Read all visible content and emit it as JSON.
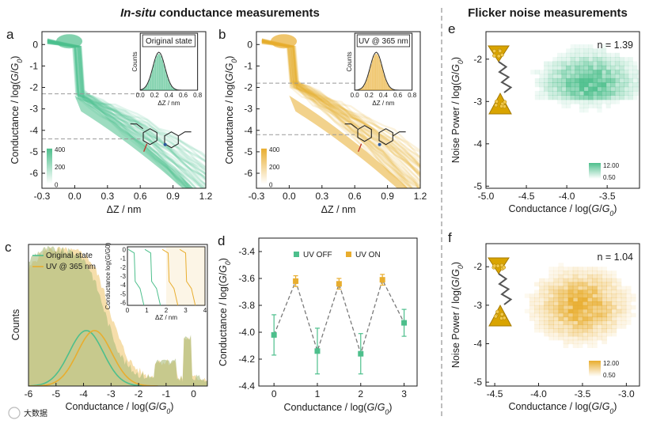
{
  "headers": {
    "left_italic": "In-situ",
    "left_rest": " conductance measurements",
    "right": "Flicker noise measurements"
  },
  "colors": {
    "green": "#4dbf8c",
    "orange": "#e8ad2e",
    "olive": "#a9ba7a",
    "dark": "#1a1a1a"
  },
  "watermark": "大数据",
  "chart_data": [
    {
      "panel": "a",
      "type": "heatmap",
      "xlabel": "ΔZ / nm",
      "ylabel": "Conductance / log(G/G0)",
      "xticks": [
        "-0.3",
        "0.0",
        "0.3",
        "0.6",
        "0.9",
        "1.2"
      ],
      "yticks": [
        "0",
        "-1",
        "-2",
        "-3",
        "-4",
        "-5",
        "-6"
      ],
      "xlim": [
        -0.3,
        1.2
      ],
      "ylim": [
        -6.7,
        0.6
      ],
      "levels": [
        -2.3,
        -4.4
      ],
      "colorbar": {
        "labels": [
          "400",
          "200",
          "0"
        ]
      },
      "inset": {
        "title": "Original state",
        "xlabel": "ΔZ / nm",
        "ylabel": "Counts",
        "xticks": [
          "0.0",
          "0.2",
          "0.4",
          "0.6",
          "0.8"
        ],
        "peak": 0.26
      }
    },
    {
      "panel": "b",
      "type": "heatmap",
      "xlabel": "ΔZ / nm",
      "ylabel": "Conductance / log(G/G0)",
      "xticks": [
        "-0.3",
        "0.0",
        "0.3",
        "0.6",
        "0.9",
        "1.2"
      ],
      "yticks": [
        "0",
        "-1",
        "-2",
        "-3",
        "-4",
        "-5",
        "-6"
      ],
      "xlim": [
        -0.3,
        1.2
      ],
      "ylim": [
        -6.7,
        0.6
      ],
      "levels": [
        -1.8,
        -4.2
      ],
      "colorbar": {
        "labels": [
          "400",
          "200",
          "0"
        ]
      },
      "inset": {
        "title": "UV @ 365 nm",
        "xlabel": "ΔZ / nm",
        "ylabel": "Counts",
        "xticks": [
          "0.0",
          "0.2",
          "0.4",
          "0.6",
          "0.8"
        ],
        "peak": 0.3
      }
    },
    {
      "panel": "c",
      "type": "area",
      "xlabel": "Conductance / log(G/G0)",
      "ylabel": "Counts",
      "xticks": [
        "-6",
        "-5",
        "-4",
        "-3",
        "-2",
        "-1",
        "0"
      ],
      "xlim": [
        -6,
        0.5
      ],
      "legend": [
        "Original state",
        "UV @ 365 nm"
      ],
      "fit_peaks": [
        -3.9,
        -3.6
      ],
      "inset": {
        "ylabel": "Conductance log(G/G0)",
        "xlabel": "ΔZ / nm",
        "xticks": [
          "0",
          "1",
          "2",
          "3",
          "4"
        ],
        "yticks": [
          "0",
          "-1",
          "-2",
          "-3",
          "-4",
          "-5",
          "-6"
        ]
      }
    },
    {
      "panel": "d",
      "type": "line",
      "xlabel": "Conductance / log(G/G0)",
      "ylabel": "Conductance / log(G/G0)",
      "xticks": [
        "0",
        "1",
        "2",
        "3"
      ],
      "yticks": [
        "-3.4",
        "-3.6",
        "-3.8",
        "-4.0",
        "-4.2",
        "-4.4"
      ],
      "xlim": [
        -0.35,
        3.3
      ],
      "ylim": [
        -4.4,
        -3.3
      ],
      "series": [
        {
          "name": "UV OFF",
          "x": [
            0,
            1,
            2,
            3
          ],
          "values": [
            -4.02,
            -4.14,
            -4.16,
            -3.93
          ],
          "err": [
            0.15,
            0.17,
            0.15,
            0.1
          ]
        },
        {
          "name": "UV ON",
          "x": [
            0.5,
            1.5,
            2.5
          ],
          "values": [
            -3.62,
            -3.64,
            -3.61
          ],
          "err": [
            0.04,
            0.04,
            0.04
          ]
        }
      ]
    },
    {
      "panel": "e",
      "type": "heatmap",
      "annotation": "n = 1.39",
      "xlabel": "Conductance / log(G/G0)",
      "ylabel": "Noise Power / log(G/G0)",
      "xticks": [
        "-5.0",
        "-4.5",
        "-4.0",
        "-3.5"
      ],
      "yticks": [
        "-2",
        "-3",
        "-4",
        "-5"
      ],
      "xlim": [
        -5.0,
        -3.1
      ],
      "ylim": [
        -5.05,
        -1.35
      ],
      "colorbar": [
        "12.00",
        "0.50"
      ]
    },
    {
      "panel": "f",
      "type": "heatmap",
      "annotation": "n = 1.04",
      "xlabel": "Conductance / log(G/G0)",
      "ylabel": "Noise Power / log(G/G0)",
      "xticks": [
        "-4.5",
        "-4.0",
        "-3.5",
        "-3.0"
      ],
      "yticks": [
        "-2",
        "-3",
        "-4",
        "-5"
      ],
      "xlim": [
        -4.6,
        -2.85
      ],
      "ylim": [
        -5.1,
        -1.4
      ],
      "colorbar": [
        "12.00",
        "0.50"
      ]
    }
  ]
}
